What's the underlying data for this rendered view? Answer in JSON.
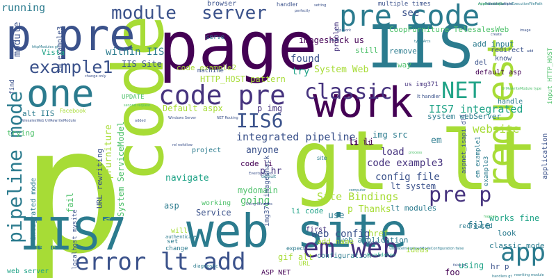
{
  "palette": {
    "yellowgreen": "#a7dc36",
    "green": "#4fc16b",
    "teal": "#20a387",
    "blue": "#2b7b8e",
    "indigo": "#3b528b",
    "purple": "#46337e",
    "dark": "#440154"
  },
  "words": [
    {
      "text": "p",
      "color": "#a7dc36"
    },
    {
      "text": "page",
      "color": "#440154"
    },
    {
      "text": "IIS",
      "color": "#2b7b8e"
    },
    {
      "text": "web site",
      "color": "#2b7b8e"
    },
    {
      "text": "gt lt",
      "color": "#a7dc36"
    },
    {
      "text": "code",
      "color": "#a7dc36"
    },
    {
      "text": "work",
      "color": "#440154"
    },
    {
      "text": "p pre",
      "color": "#3b528b"
    },
    {
      "text": "IIS7",
      "color": "#2b7b8e"
    },
    {
      "text": "request",
      "color": "#a7dc36"
    },
    {
      "text": "pre code",
      "color": "#2b7b8e"
    },
    {
      "text": "one",
      "color": "#2b7b8e"
    },
    {
      "text": "code pre",
      "color": "#46337e"
    },
    {
      "text": "em web",
      "color": "#46337e"
    },
    {
      "text": "error lt add",
      "color": "#3b528b"
    },
    {
      "text": "app",
      "color": "#2b7b8e"
    },
    {
      "text": "module",
      "color": "#3b528b"
    },
    {
      "text": "server",
      "color": "#3b528b"
    },
    {
      "text": "pipeline mode",
      "color": "#2b7b8e"
    },
    {
      "text": "example1",
      "color": "#3b528b"
    },
    {
      "text": "classic",
      "color": "#46337e"
    },
    {
      "text": "NET",
      "color": "#20a387"
    },
    {
      "text": "pre p",
      "color": "#46337e"
    },
    {
      "text": "IIS6",
      "color": "#3b528b"
    },
    {
      "text": "Site Bindings",
      "color": "#a7dc36"
    },
    {
      "text": "web config",
      "color": "#3b528b"
    },
    {
      "text": "code example3",
      "color": "#46337e"
    },
    {
      "text": "config file",
      "color": "#3b528b"
    },
    {
      "text": "integrated pipeline",
      "color": "#3b528b"
    },
    {
      "text": "IIS7 integrated",
      "color": "#20a387"
    },
    {
      "text": "website",
      "color": "#a7dc36"
    },
    {
      "text": "running",
      "color": "#2b7b8e"
    },
    {
      "text": "module",
      "color": "#3b528b"
    },
    {
      "text": "see",
      "color": "#3b528b"
    },
    {
      "text": "within IIS",
      "color": "#2b7b8e"
    },
    {
      "text": "IIS Site",
      "color": "#3b528b"
    },
    {
      "text": "HTTP_HOST pattern",
      "color": "#a7dc36"
    },
    {
      "text": "System Web",
      "color": "#a7dc36"
    },
    {
      "text": "try",
      "color": "#20a387"
    },
    {
      "text": "found",
      "color": "#3b528b"
    },
    {
      "text": "imageshack us",
      "color": "#440154"
    },
    {
      "text": "Default aspx",
      "color": "#a7dc36"
    },
    {
      "text": "p img",
      "color": "#46337e"
    },
    {
      "text": "img src",
      "color": "#2b7b8e"
    },
    {
      "text": "li li",
      "color": "#440154"
    },
    {
      "text": "load",
      "color": "#46337e"
    },
    {
      "text": "anyone",
      "color": "#3b528b"
    },
    {
      "text": "p hr",
      "color": "#46337e"
    },
    {
      "text": "code li",
      "color": "#440154"
    },
    {
      "text": "navigate",
      "color": "#20a387"
    },
    {
      "text": "mydomain",
      "color": "#4fc16b"
    },
    {
      "text": "lt system",
      "color": "#3b528b"
    },
    {
      "text": "going",
      "color": "#4fc16b"
    },
    {
      "text": "li code",
      "color": "#20a387"
    },
    {
      "text": "p Thanks",
      "color": "#a7dc36"
    },
    {
      "text": "lt modules",
      "color": "#2b7b8e"
    },
    {
      "text": "file",
      "color": "#2b7b8e"
    },
    {
      "text": "works fine",
      "color": "#20a387"
    },
    {
      "text": "classic mode",
      "color": "#2b7b8e"
    },
    {
      "text": "CoopFurniture TelesalesWeb",
      "color": "#4fc16b"
    },
    {
      "text": "add input",
      "color": "#2b7b8e"
    },
    {
      "text": "Service",
      "color": "#3b528b"
    },
    {
      "text": "asp",
      "color": "#2b7b8e"
    },
    {
      "text": "fail",
      "color": "#4fc16b"
    },
    {
      "text": "alt IIS",
      "color": "#2b7b8e"
    },
    {
      "text": "code example2",
      "color": "#a7dc36"
    },
    {
      "text": "em example3",
      "color": "#3b528b"
    },
    {
      "text": "Vista",
      "color": "#20a387"
    },
    {
      "text": "still",
      "color": "#4fc16b"
    },
    {
      "text": "removed",
      "color": "#2b7b8e"
    },
    {
      "text": "way",
      "color": "#4fc16b"
    },
    {
      "text": "del",
      "color": "#3b528b"
    },
    {
      "text": "know",
      "color": "#3b528b"
    },
    {
      "text": "redirect",
      "color": "#3b528b"
    },
    {
      "text": "default asp",
      "color": "#440154"
    },
    {
      "text": "handle",
      "color": "#2b7b8e"
    },
    {
      "text": "system webServer",
      "color": "#2b7b8e"
    },
    {
      "text": "application",
      "color": "#3b528b"
    },
    {
      "text": "input HTTP_HOST",
      "color": "#4fc16b"
    },
    {
      "text": "System ServiceModel",
      "color": "#4fc16b"
    },
    {
      "text": "Arcs CoopFurniture",
      "color": "#a7dc36"
    },
    {
      "text": "URL rewriting",
      "color": "#3b528b"
    },
    {
      "text": "integrated mode",
      "color": "#2b7b8e"
    },
    {
      "text": "img371 imageshack",
      "color": "#3b528b"
    },
    {
      "text": "use",
      "color": "#2b7b8e"
    },
    {
      "text": "li li",
      "color": "#440154"
    },
    {
      "text": "web application",
      "color": "#2b7b8e"
    },
    {
      "text": "em",
      "color": "#2b7b8e"
    },
    {
      "text": "trying",
      "color": "#4fc16b"
    },
    {
      "text": "web server",
      "color": "#20a387"
    },
    {
      "text": "issue",
      "color": "#a7dc36"
    },
    {
      "text": "add name",
      "color": "#a7dc36"
    },
    {
      "text": "href",
      "color": "#a7dc36"
    },
    {
      "text": "gif alt",
      "color": "#a7dc36"
    },
    {
      "text": "ASP NET",
      "color": "#440154"
    },
    {
      "text": "configuration",
      "color": "#2b7b8e"
    },
    {
      "text": "using",
      "color": "#20a387"
    },
    {
      "text": "hr p",
      "color": "#3b528b"
    },
    {
      "text": "ideas",
      "color": "#a7dc36"
    },
    {
      "text": "look",
      "color": "#2b7b8e"
    },
    {
      "text": "foo",
      "color": "#440154"
    },
    {
      "text": "first",
      "color": "#46337e"
    },
    {
      "text": "will",
      "color": "#a7dc36"
    },
    {
      "text": "working",
      "color": "#4fc16b"
    },
    {
      "text": "project",
      "color": "#2b7b8e"
    },
    {
      "text": "browser",
      "color": "#3b528b"
    },
    {
      "text": "serve",
      "color": "#2b7b8e"
    },
    {
      "text": "multiple times",
      "color": "#3b528b"
    },
    {
      "text": "UPDATE",
      "color": "#4fc16b"
    },
    {
      "text": "set",
      "color": "#2b7b8e"
    },
    {
      "text": "change",
      "color": "#2b7b8e"
    },
    {
      "text": "recreated",
      "color": "#2b7b8e"
    },
    {
      "text": "problem",
      "color": "#46337e"
    },
    {
      "text": "machine",
      "color": "#3b528b"
    },
    {
      "text": "find",
      "color": "#3b528b"
    },
    {
      "text": "us img371",
      "color": "#46337e"
    },
    {
      "text": "aspnet_isapi dll",
      "color": "#3b528b"
    },
    {
      "text": "example3",
      "color": "#2b7b8e"
    },
    {
      "text": "em example1",
      "color": "#2b7b8e"
    },
    {
      "text": "localhost mysite",
      "color": "#3b528b"
    },
    {
      "text": "URL",
      "color": "#a7dc36"
    },
    {
      "text": "need",
      "color": "#3b528b"
    },
    {
      "text": "Facebook",
      "color": "#a7dc36"
    },
    {
      "text": "handler",
      "color": "#3b528b"
    },
    {
      "text": "lt handler",
      "color": "#3b528b"
    },
    {
      "text": "site",
      "color": "#2b7b8e"
    },
    {
      "text": "lt validation",
      "color": "#20a387"
    },
    {
      "text": "diagnostic",
      "color": "#2b7b8e"
    },
    {
      "text": "authenticate",
      "color": "#2b7b8e"
    },
    {
      "text": "expect",
      "color": "#2b7b8e"
    },
    {
      "text": "httpModules gt",
      "color": "#2b7b8e"
    },
    {
      "text": "second request",
      "color": "#4fc16b"
    },
    {
      "text": "Windows Server",
      "color": "#3b528b"
    },
    {
      "text": "NET Routing",
      "color": "#3b528b"
    },
    {
      "text": "Events raised",
      "color": "#3b528b"
    },
    {
      "text": "default",
      "color": "#2b7b8e"
    },
    {
      "text": "TelesalesWeb UrlRewriteModule",
      "color": "#3b528b"
    },
    {
      "text": "AppRelativeCurrentExecutionFilePath",
      "color": "#2b7b8e"
    },
    {
      "text": "raised multiple",
      "color": "#4fc16b"
    },
    {
      "text": "handlers gt",
      "color": "#2b7b8e"
    },
    {
      "text": "rewriting module",
      "color": "#2b7b8e"
    },
    {
      "text": "type Arcs",
      "color": "#2b7b8e"
    },
    {
      "text": "computer",
      "color": "#2b7b8e"
    },
    {
      "text": "Using Windows",
      "color": "#3b528b"
    },
    {
      "text": "rel nofollow",
      "color": "#3b528b"
    },
    {
      "text": "setting",
      "color": "#3b528b"
    },
    {
      "text": "perfectly",
      "color": "#3b528b"
    },
    {
      "text": "create",
      "color": "#3b528b"
    },
    {
      "text": "image",
      "color": "#3b528b"
    },
    {
      "text": "add",
      "color": "#3b528b"
    },
    {
      "text": "happen",
      "color": "#4fc16b"
    },
    {
      "text": "process",
      "color": "#4fc16b"
    },
    {
      "text": "false gt",
      "color": "#3b528b"
    },
    {
      "text": "change only",
      "color": "#3b528b"
    },
    {
      "text": "result",
      "color": "#3b528b"
    },
    {
      "text": "raised multiple",
      "color": "#3b528b"
    },
    {
      "text": "app work",
      "color": "#3b528b"
    },
    {
      "text": "added",
      "color": "#3b528b"
    },
    {
      "text": "validateIntegratedModeConfiguration false",
      "color": "#2b7b8e"
    },
    {
      "text": "UrlRewriteModule type",
      "color": "#4fc16b"
    }
  ]
}
